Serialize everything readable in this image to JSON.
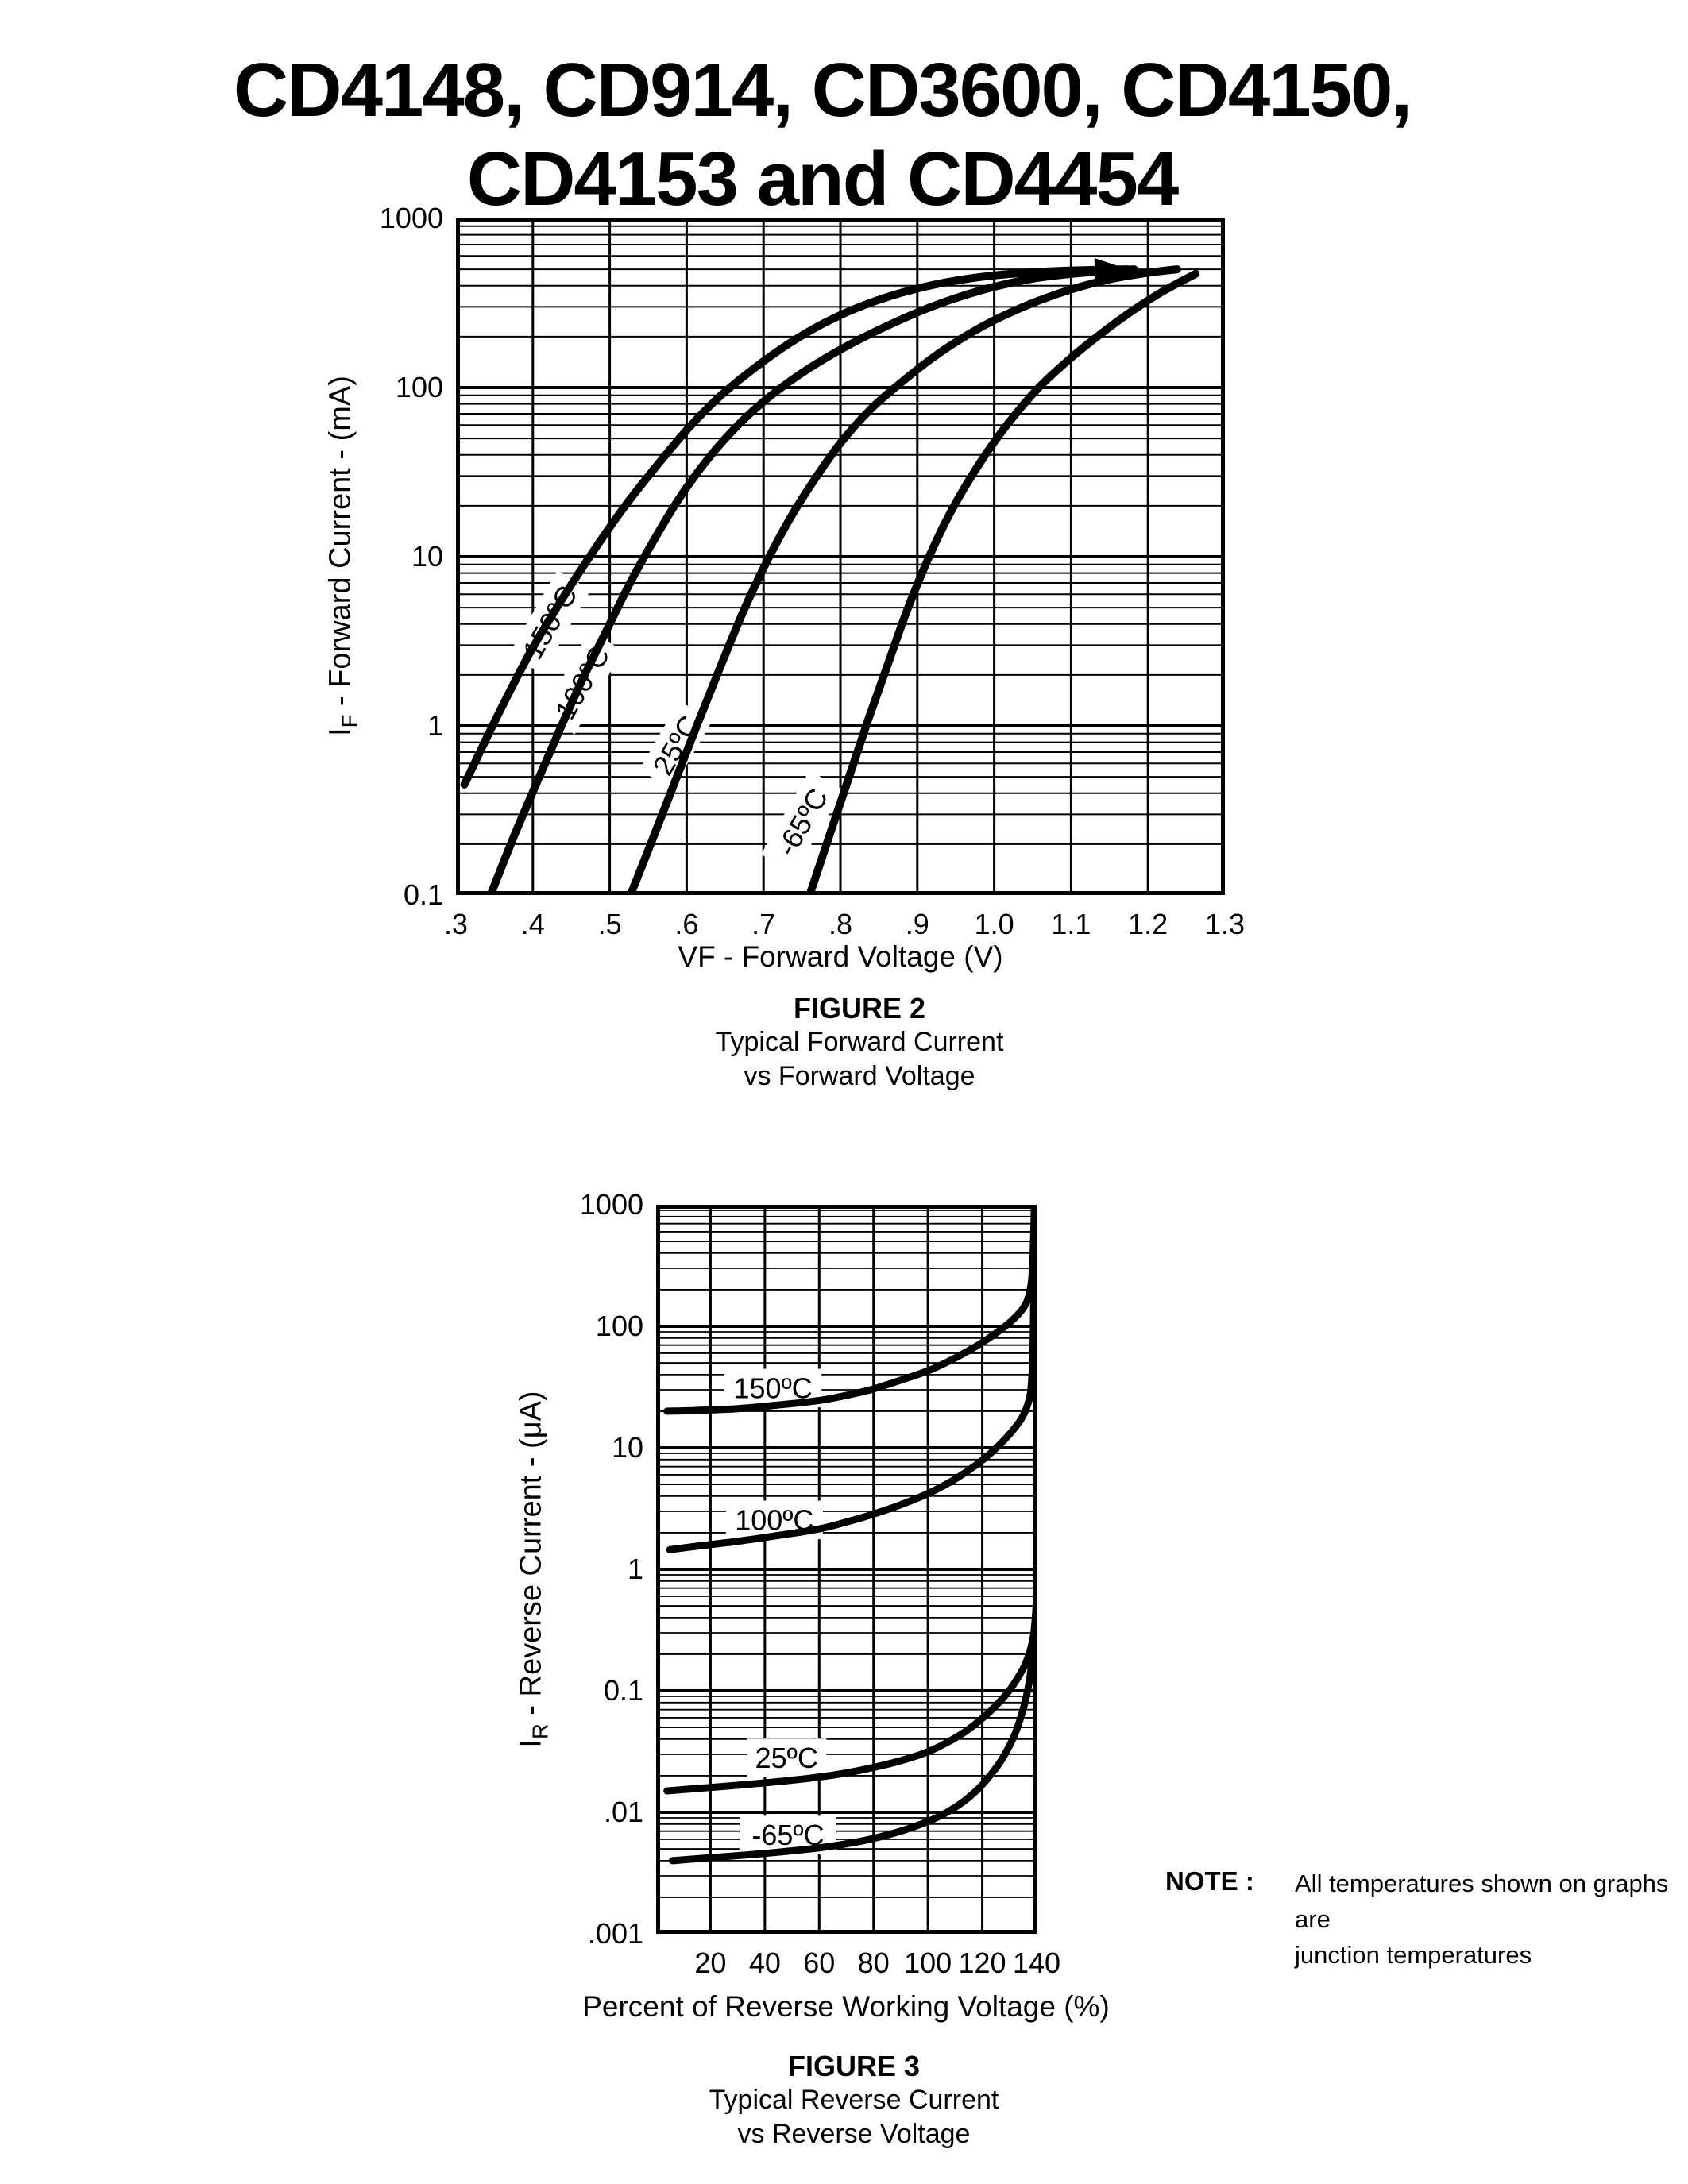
{
  "page": {
    "title_line1": "CD4148, CD914, CD3600, CD4150,",
    "title_line2": "CD4153 and CD4454"
  },
  "figure2": {
    "name": "FIGURE 2",
    "caption_line1": "Typical Forward Current",
    "caption_line2": "vs Forward Voltage",
    "xlabel": "VF - Forward Voltage (V)",
    "ylabel_pre": "I",
    "ylabel_sub": "F",
    "ylabel_post": " - Forward Current - (mA)"
  },
  "figure3": {
    "name": "FIGURE 3",
    "caption_line1": "Typical Reverse Current",
    "caption_line2": "vs Reverse Voltage",
    "xlabel": "Percent of Reverse Working Voltage (%)",
    "ylabel_pre": "I",
    "ylabel_sub": "R",
    "ylabel_post": " - Reverse Current - (μA)"
  },
  "note": {
    "label": "NOTE :",
    "line1": "All temperatures shown on graphs are",
    "line2": "junction temperatures"
  },
  "chart_data": [
    {
      "type": "line",
      "figure": "FIGURE 2",
      "title": "Typical Forward Current vs Forward Voltage",
      "xlabel": "VF - Forward Voltage (V)",
      "ylabel": "IF - Forward Current - (mA)",
      "x_axis": {
        "min": 0.3,
        "max": 1.3,
        "scale": "linear",
        "ticks": [
          {
            "value": 0.3,
            "label": ".3"
          },
          {
            "value": 0.4,
            "label": ".4"
          },
          {
            "value": 0.5,
            "label": ".5"
          },
          {
            "value": 0.6,
            "label": ".6"
          },
          {
            "value": 0.7,
            "label": ".7"
          },
          {
            "value": 0.8,
            "label": ".8"
          },
          {
            "value": 0.9,
            "label": ".9"
          },
          {
            "value": 1.0,
            "label": "1.0"
          },
          {
            "value": 1.1,
            "label": "1.1"
          },
          {
            "value": 1.2,
            "label": "1.2"
          },
          {
            "value": 1.3,
            "label": "1.3"
          }
        ]
      },
      "y_axis": {
        "min": 0.1,
        "max": 1000,
        "scale": "log",
        "ticks": [
          {
            "value": 1000,
            "label": "1000"
          },
          {
            "value": 100,
            "label": "100"
          },
          {
            "value": 10,
            "label": "10"
          },
          {
            "value": 1,
            "label": "1"
          },
          {
            "value": 0.1,
            "label": "0.1"
          }
        ]
      },
      "grid": "log-major-minor",
      "legend_position": "on-curve",
      "series": [
        {
          "name": "150ºC",
          "label_at": {
            "x": 0.422,
            "y": 4.1
          },
          "label_rotation": -60,
          "arrow_tip": true,
          "points": [
            [
              0.311,
              0.45
            ],
            [
              0.34,
              0.85
            ],
            [
              0.37,
              1.6
            ],
            [
              0.4,
              2.9
            ],
            [
              0.44,
              5.8
            ],
            [
              0.48,
              11
            ],
            [
              0.52,
              20
            ],
            [
              0.56,
              34
            ],
            [
              0.6,
              56
            ],
            [
              0.64,
              86
            ],
            [
              0.68,
              122
            ],
            [
              0.72,
              166
            ],
            [
              0.76,
              216
            ],
            [
              0.8,
              268
            ],
            [
              0.84,
              318
            ],
            [
              0.88,
              364
            ],
            [
              0.92,
              404
            ],
            [
              0.96,
              436
            ],
            [
              1.0,
              460
            ],
            [
              1.05,
              480
            ],
            [
              1.1,
              492
            ],
            [
              1.174,
              500
            ]
          ]
        },
        {
          "name": "100ºC",
          "label_at": {
            "x": 0.464,
            "y": 1.8
          },
          "label_rotation": -60,
          "arrow_tip": false,
          "points": [
            [
              0.345,
              0.1
            ],
            [
              0.375,
              0.22
            ],
            [
              0.405,
              0.46
            ],
            [
              0.435,
              0.95
            ],
            [
              0.465,
              1.9
            ],
            [
              0.495,
              3.6
            ],
            [
              0.525,
              6.8
            ],
            [
              0.555,
              12
            ],
            [
              0.59,
              22
            ],
            [
              0.63,
              39
            ],
            [
              0.67,
              62
            ],
            [
              0.71,
              90
            ],
            [
              0.75,
              122
            ],
            [
              0.79,
              158
            ],
            [
              0.83,
              198
            ],
            [
              0.87,
              242
            ],
            [
              0.91,
              290
            ],
            [
              0.95,
              338
            ],
            [
              1.0,
              394
            ],
            [
              1.05,
              440
            ],
            [
              1.1,
              470
            ],
            [
              1.14,
              486
            ],
            [
              1.182,
              500
            ]
          ]
        },
        {
          "name": "25ºC",
          "label_at": {
            "x": 0.586,
            "y": 0.77
          },
          "label_rotation": -60,
          "arrow_tip": false,
          "points": [
            [
              0.527,
              0.1
            ],
            [
              0.555,
              0.21
            ],
            [
              0.585,
              0.47
            ],
            [
              0.615,
              1.05
            ],
            [
              0.645,
              2.3
            ],
            [
              0.675,
              4.9
            ],
            [
              0.705,
              9.5
            ],
            [
              0.735,
              17
            ],
            [
              0.765,
              28
            ],
            [
              0.8,
              47
            ],
            [
              0.84,
              75
            ],
            [
              0.88,
              108
            ],
            [
              0.92,
              150
            ],
            [
              0.96,
              198
            ],
            [
              1.0,
              250
            ],
            [
              1.05,
              316
            ],
            [
              1.1,
              380
            ],
            [
              1.15,
              436
            ],
            [
              1.2,
              477
            ],
            [
              1.238,
              500
            ]
          ]
        },
        {
          "name": "-65ºC",
          "label_at": {
            "x": 0.75,
            "y": 0.27
          },
          "label_rotation": -60,
          "arrow_tip": false,
          "points": [
            [
              0.76,
              0.1
            ],
            [
              0.785,
              0.22
            ],
            [
              0.81,
              0.48
            ],
            [
              0.835,
              1.05
            ],
            [
              0.86,
              2.2
            ],
            [
              0.885,
              4.6
            ],
            [
              0.91,
              8.8
            ],
            [
              0.935,
              15.5
            ],
            [
              0.96,
              25
            ],
            [
              0.99,
              41
            ],
            [
              1.02,
              63
            ],
            [
              1.058,
              100
            ],
            [
              1.1,
              150
            ],
            [
              1.14,
              210
            ],
            [
              1.18,
              285
            ],
            [
              1.22,
              372
            ],
            [
              1.262,
              470
            ]
          ]
        }
      ]
    },
    {
      "type": "line",
      "figure": "FIGURE 3",
      "title": "Typical Reverse Current vs Reverse Voltage",
      "xlabel": "Percent of Reverse Working Voltage (%)",
      "ylabel": "IR - Reverse Current - (μA)",
      "x_axis": {
        "min": 0,
        "max": 140,
        "scale": "linear",
        "ticks": [
          {
            "value": 20,
            "label": "20"
          },
          {
            "value": 40,
            "label": "40"
          },
          {
            "value": 60,
            "label": "60"
          },
          {
            "value": 80,
            "label": "80"
          },
          {
            "value": 100,
            "label": "100"
          },
          {
            "value": 120,
            "label": "120"
          },
          {
            "value": 140,
            "label": "140"
          }
        ]
      },
      "y_axis": {
        "min": 0.001,
        "max": 1000,
        "scale": "log",
        "ticks": [
          {
            "value": 1000,
            "label": "1000"
          },
          {
            "value": 100,
            "label": "100"
          },
          {
            "value": 10,
            "label": "10"
          },
          {
            "value": 1,
            "label": "1"
          },
          {
            "value": 0.1,
            "label": "0.1"
          },
          {
            "value": 0.01,
            "label": ".01"
          },
          {
            "value": 0.001,
            "label": ".001"
          }
        ]
      },
      "grid": "log-major-minor",
      "legend_position": "on-curve",
      "series": [
        {
          "name": "150ºC",
          "label_at": {
            "x": 43,
            "y": 31
          },
          "label_rotation": 0,
          "arrow_tip": false,
          "points": [
            [
              4,
              20
            ],
            [
              15,
              20.3
            ],
            [
              30,
              21
            ],
            [
              45,
              22.5
            ],
            [
              60,
              24.5
            ],
            [
              70,
              27
            ],
            [
              80,
              30.5
            ],
            [
              90,
              36
            ],
            [
              100,
              43
            ],
            [
              108,
              52
            ],
            [
              115,
              63
            ],
            [
              121,
              76
            ],
            [
              126,
              91
            ],
            [
              130,
              107
            ],
            [
              133,
              124
            ],
            [
              135.5,
              146
            ],
            [
              137.3,
              185
            ],
            [
              138.5,
              300
            ],
            [
              139.2,
              1000
            ]
          ]
        },
        {
          "name": "100ºC",
          "label_at": {
            "x": 43.5,
            "y": 2.55
          },
          "label_rotation": 0,
          "arrow_tip": false,
          "points": [
            [
              5,
              1.45
            ],
            [
              15,
              1.55
            ],
            [
              30,
              1.7
            ],
            [
              45,
              1.9
            ],
            [
              60,
              2.15
            ],
            [
              70,
              2.45
            ],
            [
              80,
              2.85
            ],
            [
              90,
              3.4
            ],
            [
              100,
              4.2
            ],
            [
              108,
              5.2
            ],
            [
              114,
              6.3
            ],
            [
              120,
              7.9
            ],
            [
              125,
              9.9
            ],
            [
              129,
              12.2
            ],
            [
              132,
              14.6
            ],
            [
              134.5,
              17.5
            ],
            [
              136.5,
              22
            ],
            [
              138,
              32
            ],
            [
              138.8,
              90
            ],
            [
              139.2,
              1000
            ]
          ]
        },
        {
          "name": "25ºC",
          "label_at": {
            "x": 48,
            "y": 0.028
          },
          "label_rotation": 0,
          "arrow_tip": false,
          "points": [
            [
              4,
              0.015
            ],
            [
              15,
              0.0157
            ],
            [
              30,
              0.0167
            ],
            [
              45,
              0.0179
            ],
            [
              60,
              0.0195
            ],
            [
              70,
              0.0211
            ],
            [
              80,
              0.0234
            ],
            [
              90,
              0.0266
            ],
            [
              100,
              0.0315
            ],
            [
              107,
              0.0375
            ],
            [
              113,
              0.045
            ],
            [
              118,
              0.0545
            ],
            [
              123,
              0.068
            ],
            [
              127,
              0.084
            ],
            [
              130,
              0.101
            ],
            [
              133,
              0.127
            ],
            [
              135.5,
              0.16
            ],
            [
              137.5,
              0.21
            ],
            [
              139,
              0.3
            ],
            [
              140,
              0.55
            ]
          ]
        },
        {
          "name": "-65ºC",
          "label_at": {
            "x": 48.5,
            "y": 0.0065
          },
          "label_rotation": 0,
          "arrow_tip": false,
          "points": [
            [
              6,
              0.004
            ],
            [
              15,
              0.00415
            ],
            [
              30,
              0.0044
            ],
            [
              45,
              0.0047
            ],
            [
              60,
              0.0051
            ],
            [
              70,
              0.0055
            ],
            [
              80,
              0.0061
            ],
            [
              90,
              0.007
            ],
            [
              100,
              0.0084
            ],
            [
              107,
              0.01
            ],
            [
              113,
              0.0122
            ],
            [
              118,
              0.0152
            ],
            [
              122,
              0.019
            ],
            [
              126,
              0.0248
            ],
            [
              129,
              0.032
            ],
            [
              132,
              0.044
            ],
            [
              134.5,
              0.064
            ],
            [
              136.5,
              0.096
            ],
            [
              138,
              0.155
            ],
            [
              139.3,
              0.3
            ],
            [
              140,
              0.62
            ]
          ]
        }
      ]
    }
  ]
}
